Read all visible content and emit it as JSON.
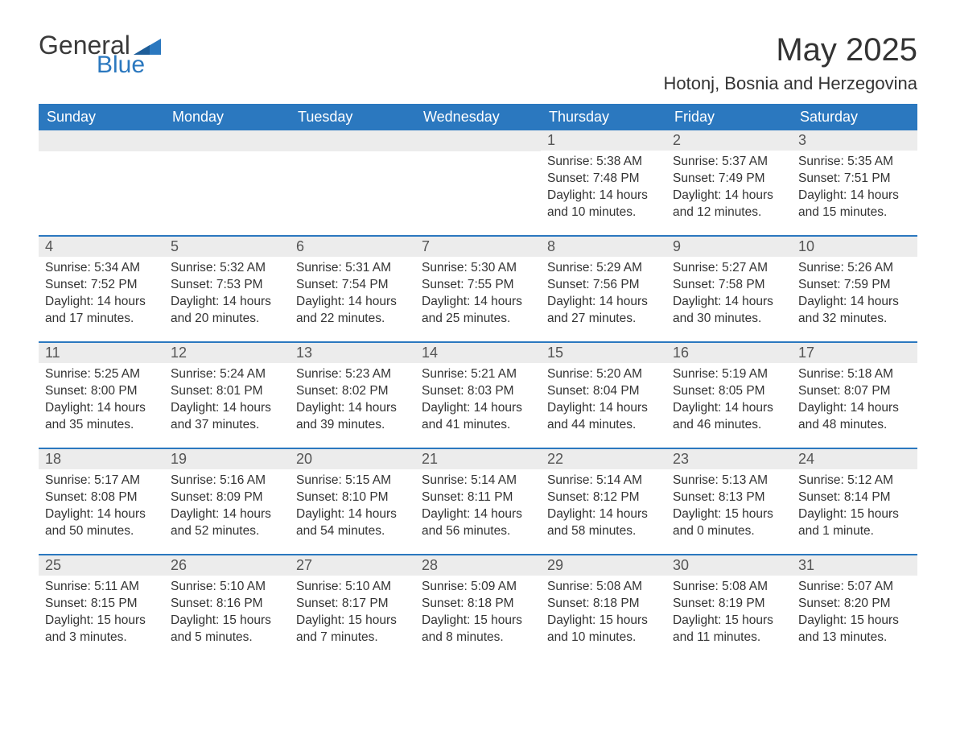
{
  "brand": {
    "word1": "General",
    "word2": "Blue",
    "text_color": "#3a3a3a",
    "accent_color": "#2b78bf"
  },
  "header": {
    "month_year": "May 2025",
    "location": "Hotonj, Bosnia and Herzegovina"
  },
  "theme": {
    "header_bg": "#2b78bf",
    "header_text": "#ffffff",
    "daynum_bg": "#ececec",
    "daynum_text": "#555555",
    "body_text": "#333333",
    "divider": "#2b78bf",
    "page_bg": "#ffffff"
  },
  "weekdays": [
    "Sunday",
    "Monday",
    "Tuesday",
    "Wednesday",
    "Thursday",
    "Friday",
    "Saturday"
  ],
  "weeks": [
    [
      null,
      null,
      null,
      null,
      {
        "n": "1",
        "sunrise": "Sunrise: 5:38 AM",
        "sunset": "Sunset: 7:48 PM",
        "daylight": "Daylight: 14 hours and 10 minutes."
      },
      {
        "n": "2",
        "sunrise": "Sunrise: 5:37 AM",
        "sunset": "Sunset: 7:49 PM",
        "daylight": "Daylight: 14 hours and 12 minutes."
      },
      {
        "n": "3",
        "sunrise": "Sunrise: 5:35 AM",
        "sunset": "Sunset: 7:51 PM",
        "daylight": "Daylight: 14 hours and 15 minutes."
      }
    ],
    [
      {
        "n": "4",
        "sunrise": "Sunrise: 5:34 AM",
        "sunset": "Sunset: 7:52 PM",
        "daylight": "Daylight: 14 hours and 17 minutes."
      },
      {
        "n": "5",
        "sunrise": "Sunrise: 5:32 AM",
        "sunset": "Sunset: 7:53 PM",
        "daylight": "Daylight: 14 hours and 20 minutes."
      },
      {
        "n": "6",
        "sunrise": "Sunrise: 5:31 AM",
        "sunset": "Sunset: 7:54 PM",
        "daylight": "Daylight: 14 hours and 22 minutes."
      },
      {
        "n": "7",
        "sunrise": "Sunrise: 5:30 AM",
        "sunset": "Sunset: 7:55 PM",
        "daylight": "Daylight: 14 hours and 25 minutes."
      },
      {
        "n": "8",
        "sunrise": "Sunrise: 5:29 AM",
        "sunset": "Sunset: 7:56 PM",
        "daylight": "Daylight: 14 hours and 27 minutes."
      },
      {
        "n": "9",
        "sunrise": "Sunrise: 5:27 AM",
        "sunset": "Sunset: 7:58 PM",
        "daylight": "Daylight: 14 hours and 30 minutes."
      },
      {
        "n": "10",
        "sunrise": "Sunrise: 5:26 AM",
        "sunset": "Sunset: 7:59 PM",
        "daylight": "Daylight: 14 hours and 32 minutes."
      }
    ],
    [
      {
        "n": "11",
        "sunrise": "Sunrise: 5:25 AM",
        "sunset": "Sunset: 8:00 PM",
        "daylight": "Daylight: 14 hours and 35 minutes."
      },
      {
        "n": "12",
        "sunrise": "Sunrise: 5:24 AM",
        "sunset": "Sunset: 8:01 PM",
        "daylight": "Daylight: 14 hours and 37 minutes."
      },
      {
        "n": "13",
        "sunrise": "Sunrise: 5:23 AM",
        "sunset": "Sunset: 8:02 PM",
        "daylight": "Daylight: 14 hours and 39 minutes."
      },
      {
        "n": "14",
        "sunrise": "Sunrise: 5:21 AM",
        "sunset": "Sunset: 8:03 PM",
        "daylight": "Daylight: 14 hours and 41 minutes."
      },
      {
        "n": "15",
        "sunrise": "Sunrise: 5:20 AM",
        "sunset": "Sunset: 8:04 PM",
        "daylight": "Daylight: 14 hours and 44 minutes."
      },
      {
        "n": "16",
        "sunrise": "Sunrise: 5:19 AM",
        "sunset": "Sunset: 8:05 PM",
        "daylight": "Daylight: 14 hours and 46 minutes."
      },
      {
        "n": "17",
        "sunrise": "Sunrise: 5:18 AM",
        "sunset": "Sunset: 8:07 PM",
        "daylight": "Daylight: 14 hours and 48 minutes."
      }
    ],
    [
      {
        "n": "18",
        "sunrise": "Sunrise: 5:17 AM",
        "sunset": "Sunset: 8:08 PM",
        "daylight": "Daylight: 14 hours and 50 minutes."
      },
      {
        "n": "19",
        "sunrise": "Sunrise: 5:16 AM",
        "sunset": "Sunset: 8:09 PM",
        "daylight": "Daylight: 14 hours and 52 minutes."
      },
      {
        "n": "20",
        "sunrise": "Sunrise: 5:15 AM",
        "sunset": "Sunset: 8:10 PM",
        "daylight": "Daylight: 14 hours and 54 minutes."
      },
      {
        "n": "21",
        "sunrise": "Sunrise: 5:14 AM",
        "sunset": "Sunset: 8:11 PM",
        "daylight": "Daylight: 14 hours and 56 minutes."
      },
      {
        "n": "22",
        "sunrise": "Sunrise: 5:14 AM",
        "sunset": "Sunset: 8:12 PM",
        "daylight": "Daylight: 14 hours and 58 minutes."
      },
      {
        "n": "23",
        "sunrise": "Sunrise: 5:13 AM",
        "sunset": "Sunset: 8:13 PM",
        "daylight": "Daylight: 15 hours and 0 minutes."
      },
      {
        "n": "24",
        "sunrise": "Sunrise: 5:12 AM",
        "sunset": "Sunset: 8:14 PM",
        "daylight": "Daylight: 15 hours and 1 minute."
      }
    ],
    [
      {
        "n": "25",
        "sunrise": "Sunrise: 5:11 AM",
        "sunset": "Sunset: 8:15 PM",
        "daylight": "Daylight: 15 hours and 3 minutes."
      },
      {
        "n": "26",
        "sunrise": "Sunrise: 5:10 AM",
        "sunset": "Sunset: 8:16 PM",
        "daylight": "Daylight: 15 hours and 5 minutes."
      },
      {
        "n": "27",
        "sunrise": "Sunrise: 5:10 AM",
        "sunset": "Sunset: 8:17 PM",
        "daylight": "Daylight: 15 hours and 7 minutes."
      },
      {
        "n": "28",
        "sunrise": "Sunrise: 5:09 AM",
        "sunset": "Sunset: 8:18 PM",
        "daylight": "Daylight: 15 hours and 8 minutes."
      },
      {
        "n": "29",
        "sunrise": "Sunrise: 5:08 AM",
        "sunset": "Sunset: 8:18 PM",
        "daylight": "Daylight: 15 hours and 10 minutes."
      },
      {
        "n": "30",
        "sunrise": "Sunrise: 5:08 AM",
        "sunset": "Sunset: 8:19 PM",
        "daylight": "Daylight: 15 hours and 11 minutes."
      },
      {
        "n": "31",
        "sunrise": "Sunrise: 5:07 AM",
        "sunset": "Sunset: 8:20 PM",
        "daylight": "Daylight: 15 hours and 13 minutes."
      }
    ]
  ]
}
